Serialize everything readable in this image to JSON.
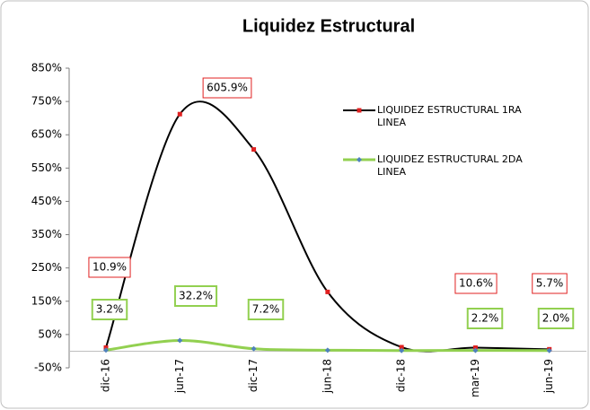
{
  "chart_data": {
    "type": "line",
    "title": "Liquidez Estructural",
    "categories": [
      "dic-16",
      "jun-17",
      "dic-17",
      "jun-18",
      "dic-18",
      "mar-19",
      "jun-19"
    ],
    "series": [
      {
        "name": "LIQUIDEZ ESTRUCTURAL 1RA LINEA",
        "color": "#000000",
        "marker_color": "#e02020",
        "values": [
          10.9,
          712,
          605.9,
          178,
          12,
          10.6,
          5.7
        ],
        "value_labels": [
          "10.9%",
          null,
          "605.9%",
          null,
          null,
          "10.6%",
          "5.7%"
        ]
      },
      {
        "name": "LIQUIDEZ ESTRUCTURAL 2DA LINEA",
        "color": "#92d050",
        "marker_color": "#4f81bd",
        "values": [
          3.2,
          32.2,
          7.2,
          3,
          2,
          2.2,
          2.0
        ],
        "value_labels": [
          "3.2%",
          "32.2%",
          "7.2%",
          null,
          null,
          "2.2%",
          "2.0%"
        ]
      }
    ],
    "ylim": [
      -50,
      850
    ],
    "yticks": [
      {
        "value": -50,
        "label": "-50%"
      },
      {
        "value": 50,
        "label": "50%"
      },
      {
        "value": 150,
        "label": "150%"
      },
      {
        "value": 250,
        "label": "250%"
      },
      {
        "value": 350,
        "label": "350%"
      },
      {
        "value": 450,
        "label": "450%"
      },
      {
        "value": 550,
        "label": "550%"
      },
      {
        "value": 650,
        "label": "650%"
      },
      {
        "value": 750,
        "label": "750%"
      },
      {
        "value": 850,
        "label": "850%"
      }
    ],
    "grid": false,
    "legend": "right",
    "smooth": true
  }
}
